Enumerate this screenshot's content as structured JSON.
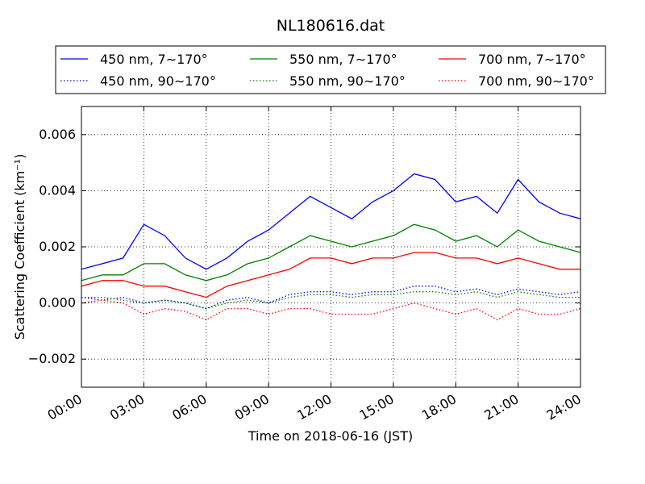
{
  "chart_data": {
    "type": "line",
    "title": "NL180616.dat",
    "xlabel": "Time on 2018-06-16 (JST)",
    "ylabel": "Scattering Coefficient (km⁻¹)",
    "xlim": [
      "00:00",
      "24:00"
    ],
    "ylim": [
      -0.003,
      0.007
    ],
    "x_ticks": [
      "00:00",
      "03:00",
      "06:00",
      "09:00",
      "12:00",
      "15:00",
      "18:00",
      "21:00",
      "24:00"
    ],
    "y_ticks": [
      {
        "value": -0.002,
        "label": "−0.002"
      },
      {
        "value": 0.0,
        "label": "0.000"
      },
      {
        "value": 0.002,
        "label": "0.002"
      },
      {
        "value": 0.004,
        "label": "0.004"
      },
      {
        "value": 0.006,
        "label": "0.006"
      }
    ],
    "grid": true,
    "legend_position": "top, above plot",
    "series": [
      {
        "name": "450 nm, 7∼170°",
        "color": "#0000ff",
        "style": "solid",
        "hours": [
          0,
          1,
          2,
          3,
          4,
          5,
          6,
          7,
          8,
          9,
          10,
          11,
          12,
          13,
          14,
          15,
          16,
          17,
          18,
          19,
          20,
          21,
          22,
          23,
          24
        ],
        "values": [
          0.0012,
          0.0014,
          0.0016,
          0.0028,
          0.0024,
          0.0016,
          0.0012,
          0.0016,
          0.0022,
          0.0026,
          0.0032,
          0.0038,
          0.0034,
          0.003,
          0.0036,
          0.004,
          0.0046,
          0.0044,
          0.0036,
          0.0038,
          0.0032,
          0.0044,
          0.0036,
          0.0032,
          0.003
        ]
      },
      {
        "name": "450 nm, 90∼170°",
        "color": "#0000ff",
        "style": "dotted",
        "hours": [
          0,
          1,
          2,
          3,
          4,
          5,
          6,
          7,
          8,
          9,
          10,
          11,
          12,
          13,
          14,
          15,
          16,
          17,
          18,
          19,
          20,
          21,
          22,
          23,
          24
        ],
        "values": [
          0.0002,
          0.0001,
          0.0002,
          0.0,
          0.0001,
          0.0,
          -0.0002,
          0.0001,
          0.0002,
          0.0,
          0.0003,
          0.0004,
          0.0004,
          0.0003,
          0.0004,
          0.0004,
          0.0006,
          0.0006,
          0.0004,
          0.0005,
          0.0003,
          0.0005,
          0.0004,
          0.0003,
          0.0004
        ]
      },
      {
        "name": "550 nm, 7∼170°",
        "color": "#008000",
        "style": "solid",
        "hours": [
          0,
          1,
          2,
          3,
          4,
          5,
          6,
          7,
          8,
          9,
          10,
          11,
          12,
          13,
          14,
          15,
          16,
          17,
          18,
          19,
          20,
          21,
          22,
          23,
          24
        ],
        "values": [
          0.0008,
          0.001,
          0.001,
          0.0014,
          0.0014,
          0.001,
          0.0008,
          0.001,
          0.0014,
          0.0016,
          0.002,
          0.0024,
          0.0022,
          0.002,
          0.0022,
          0.0024,
          0.0028,
          0.0026,
          0.0022,
          0.0024,
          0.002,
          0.0026,
          0.0022,
          0.002,
          0.0018
        ]
      },
      {
        "name": "550 nm, 90∼170°",
        "color": "#008000",
        "style": "dotted",
        "hours": [
          0,
          1,
          2,
          3,
          4,
          5,
          6,
          7,
          8,
          9,
          10,
          11,
          12,
          13,
          14,
          15,
          16,
          17,
          18,
          19,
          20,
          21,
          22,
          23,
          24
        ],
        "values": [
          0.0002,
          0.0002,
          0.0001,
          0.0,
          0.0001,
          0.0,
          -0.0002,
          0.0,
          0.0001,
          0.0,
          0.0002,
          0.0003,
          0.0003,
          0.0002,
          0.0003,
          0.0003,
          0.0004,
          0.0004,
          0.0003,
          0.0004,
          0.0002,
          0.0004,
          0.0003,
          0.0002,
          0.0002
        ]
      },
      {
        "name": "700 nm, 7∼170°",
        "color": "#ff0000",
        "style": "solid",
        "hours": [
          0,
          1,
          2,
          3,
          4,
          5,
          6,
          7,
          8,
          9,
          10,
          11,
          12,
          13,
          14,
          15,
          16,
          17,
          18,
          19,
          20,
          21,
          22,
          23,
          24
        ],
        "values": [
          0.0006,
          0.0008,
          0.0008,
          0.0006,
          0.0006,
          0.0004,
          0.0002,
          0.0006,
          0.0008,
          0.001,
          0.0012,
          0.0016,
          0.0016,
          0.0014,
          0.0016,
          0.0016,
          0.0018,
          0.0018,
          0.0016,
          0.0016,
          0.0014,
          0.0016,
          0.0014,
          0.0012,
          0.0012
        ]
      },
      {
        "name": "700 nm, 90∼170°",
        "color": "#ff0000",
        "style": "dotted",
        "hours": [
          0,
          1,
          2,
          3,
          4,
          5,
          6,
          7,
          8,
          9,
          10,
          11,
          12,
          13,
          14,
          15,
          16,
          17,
          18,
          19,
          20,
          21,
          22,
          23,
          24
        ],
        "values": [
          0.0,
          0.0001,
          0.0,
          -0.0004,
          -0.0002,
          -0.0003,
          -0.0006,
          -0.0002,
          -0.0002,
          -0.0004,
          -0.0002,
          -0.0002,
          -0.0004,
          -0.0004,
          -0.0004,
          -0.0002,
          0.0,
          -0.0002,
          -0.0004,
          -0.0002,
          -0.0006,
          -0.0002,
          -0.0004,
          -0.0004,
          -0.0002
        ]
      }
    ]
  }
}
